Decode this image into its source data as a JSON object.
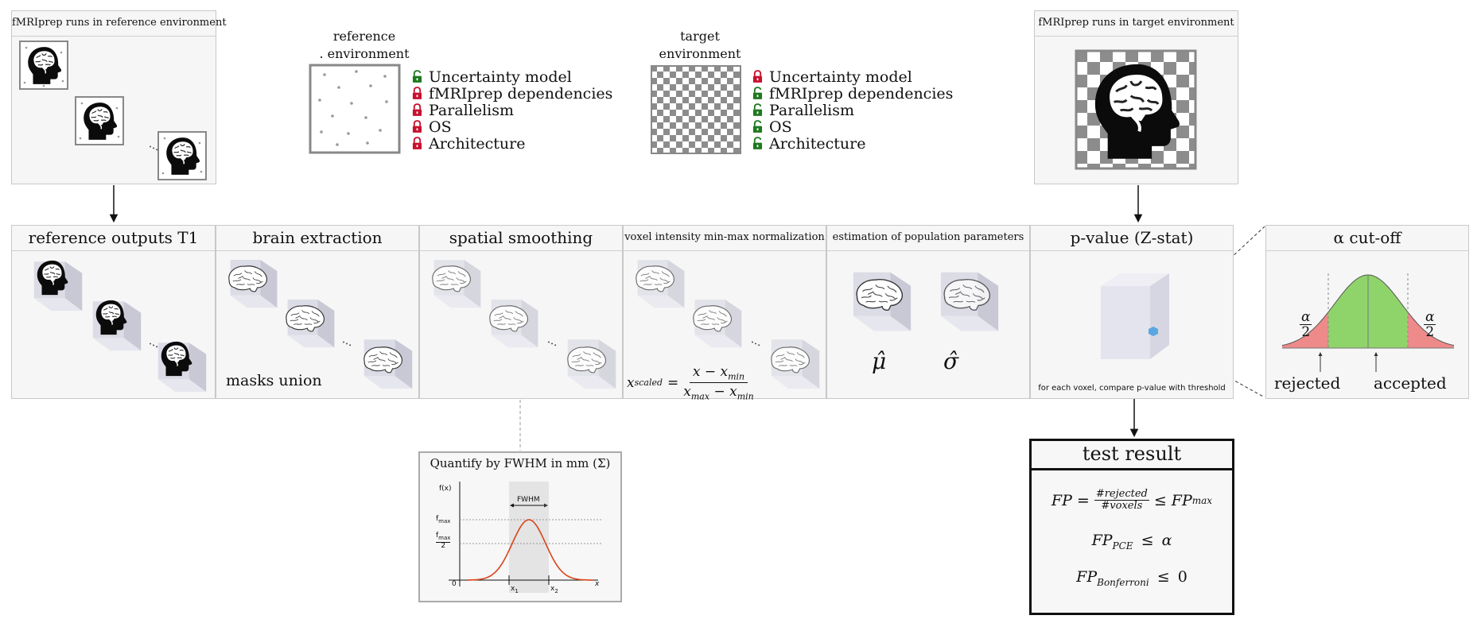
{
  "top": {
    "ref_box_title": "fMRIprep runs in reference environment",
    "target_box_title": "fMRIprep runs in target environment",
    "ref_env_label_1": "reference",
    "ref_env_label_2": ". environment",
    "target_env_label_1": "target",
    "target_env_label_2": "environment",
    "ref_locks": [
      {
        "label": "Uncertainty model",
        "state": "unlocked"
      },
      {
        "label": "fMRIprep dependencies",
        "state": "locked"
      },
      {
        "label": "Parallelism",
        "state": "locked"
      },
      {
        "label": "OS",
        "state": "locked"
      },
      {
        "label": "Architecture",
        "state": "locked"
      }
    ],
    "target_locks": [
      {
        "label": "Uncertainty model",
        "state": "locked"
      },
      {
        "label": "fMRIprep dependencies",
        "state": "unlocked"
      },
      {
        "label": "Parallelism",
        "state": "unlocked"
      },
      {
        "label": "OS",
        "state": "unlocked"
      },
      {
        "label": "Architecture",
        "state": "unlocked"
      }
    ],
    "ellipsis": "···"
  },
  "pipeline": {
    "panels": [
      {
        "title": "reference outputs T1"
      },
      {
        "title": "brain extraction",
        "note": "masks union"
      },
      {
        "title": "spatial smoothing"
      },
      {
        "title": "voxel intensity min-max normalization",
        "formula_lhs": "x",
        "formula_lhs_sub": "scaled",
        "formula_eq": "=",
        "formula_num": "x − x",
        "formula_num_sub": "min",
        "formula_den": "x",
        "formula_den_sub1": "max",
        "formula_den_mid": " − x",
        "formula_den_sub2": "min"
      },
      {
        "title": "estimation of population parameters",
        "mu": "μ̂",
        "sigma": "σ̂"
      },
      {
        "title": "p-value (Z-stat)",
        "caption": "for each voxel, compare p-value with threshold"
      }
    ],
    "ellipsis": "···"
  },
  "alpha": {
    "title": "α cut-off",
    "alpha_num": "α",
    "alpha_den": "2",
    "rejected": "rejected",
    "accepted": "accepted"
  },
  "fwhm": {
    "title": "Quantify by FWHM in mm (Σ)",
    "y_axis": "f(x)",
    "fmax": "f",
    "fmax_sub": "max",
    "half": "2",
    "zero": "0",
    "x_axis": "x",
    "x1": "x",
    "x1_sub": "1",
    "x2": "x",
    "x2_sub": "2",
    "band_label": "FWHM"
  },
  "result": {
    "title": "test result",
    "fp": "FP",
    "eq": "=",
    "num": "#rejected",
    "den": "#voxels",
    "le": "≤",
    "fpmax_sub": "max",
    "pce_sub": "PCE",
    "alpha": "α",
    "bonf_sub": "Bonferroni",
    "zero": "0"
  },
  "colors": {
    "lock_red": "#c8102e",
    "lock_green": "#1e7a1e",
    "accepted_green": "#8fd46a",
    "rejected_red": "#ee8a8a",
    "gaussian_red": "#d9441a"
  }
}
